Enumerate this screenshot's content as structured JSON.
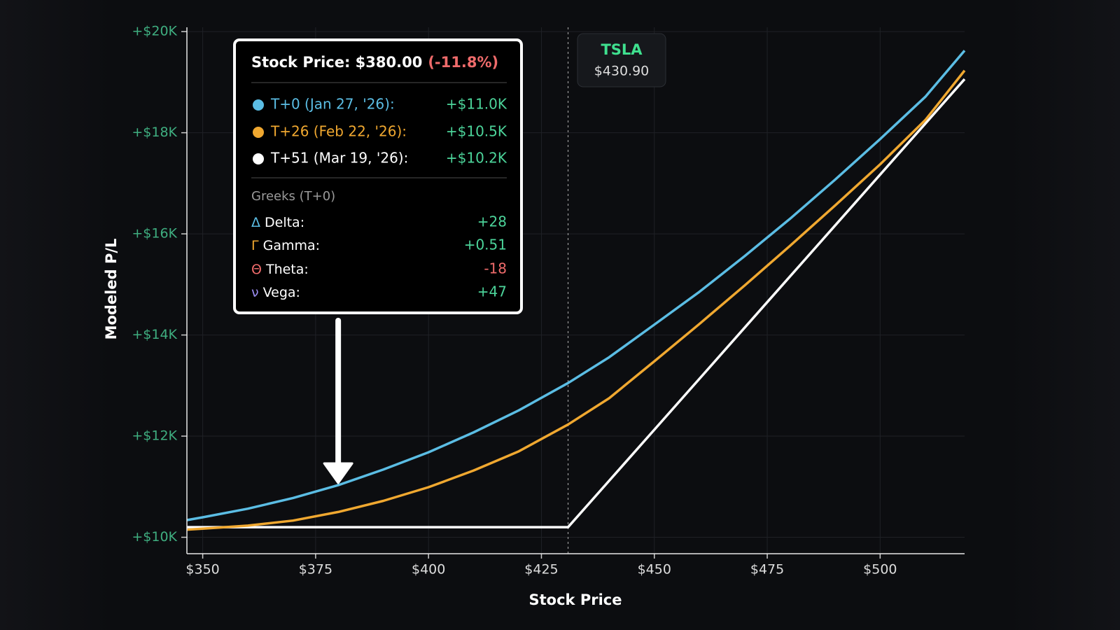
{
  "chart_data": {
    "type": "line",
    "x_label": "Stock Price",
    "y_label": "Modeled P/L",
    "x": [
      346.5,
      350,
      360,
      370,
      380,
      390,
      400,
      410,
      420,
      430.9,
      440,
      450,
      460,
      470,
      480,
      490,
      500,
      510,
      518.7
    ],
    "series": [
      {
        "name": "T+0 (Jan 27, '26):",
        "color": "#5bbde4",
        "values": [
          10339,
          10395,
          10565,
          10776,
          11030,
          11340,
          11680,
          12075,
          12510,
          13050,
          13560,
          14205,
          14855,
          15560,
          16295,
          17070,
          17875,
          18710,
          19625
        ]
      },
      {
        "name": "T+26 (Feb 22, '26):",
        "color": "#f0a830",
        "values": [
          10150,
          10170,
          10230,
          10330,
          10500,
          10720,
          10990,
          11320,
          11700,
          12230,
          12750,
          13480,
          14220,
          14980,
          15760,
          16560,
          17375,
          18250,
          19230
        ]
      },
      {
        "name": "T+51 (Mar 19, '26):",
        "color": "#ffffff",
        "values": [
          10200,
          10200,
          10200,
          10200,
          10200,
          10200,
          10200,
          10200,
          10200,
          10200,
          11118,
          12127,
          13136,
          14145,
          15154,
          16163,
          17172,
          18181,
          19060
        ]
      }
    ],
    "xlim": [
      346.5,
      518.7
    ],
    "ylim": [
      9675,
      20085
    ],
    "xticks": [
      {
        "value": 350,
        "label": "$350"
      },
      {
        "value": 375,
        "label": "$375"
      },
      {
        "value": 400,
        "label": "$400"
      },
      {
        "value": 425,
        "label": "$425"
      },
      {
        "value": 450,
        "label": "$450"
      },
      {
        "value": 475,
        "label": "$475"
      },
      {
        "value": 500,
        "label": "$500"
      }
    ],
    "yticks": [
      {
        "value": 10000,
        "label": "+$10K"
      },
      {
        "value": 12000,
        "label": "+$12K"
      },
      {
        "value": 14000,
        "label": "+$14K"
      },
      {
        "value": 16000,
        "label": "+$16K"
      },
      {
        "value": 18000,
        "label": "+$18K"
      },
      {
        "value": 20000,
        "label": "+$20K"
      }
    ],
    "grid": true,
    "badge": {
      "symbol": "TSLA",
      "price": {
        "value": 430.9,
        "label": "$430.90"
      }
    },
    "tooltip": {
      "x": 380,
      "title": "Stock Price: $380.00",
      "change": "(-11.8%)",
      "values": [
        "+$11.0K",
        "+$10.5K",
        "+$10.2K"
      ],
      "greeks_title": "Greeks (T+0)",
      "greeks": [
        {
          "symbol": "Δ",
          "label": "Delta:",
          "value": "+28",
          "color": "#5bbde4",
          "value_color": "#4cd49a"
        },
        {
          "symbol": "Γ",
          "label": "Gamma:",
          "value": "+0.51",
          "color": "#f0a830",
          "value_color": "#4cd49a"
        },
        {
          "symbol": "Θ",
          "label": "Theta:",
          "value": "-18",
          "color": "#ef6b6b",
          "value_color": "#ef6b6b"
        },
        {
          "symbol": "ν",
          "label": "Vega:",
          "value": "+47",
          "color": "#9a8cf0",
          "value_color": "#4cd49a"
        }
      ]
    }
  }
}
